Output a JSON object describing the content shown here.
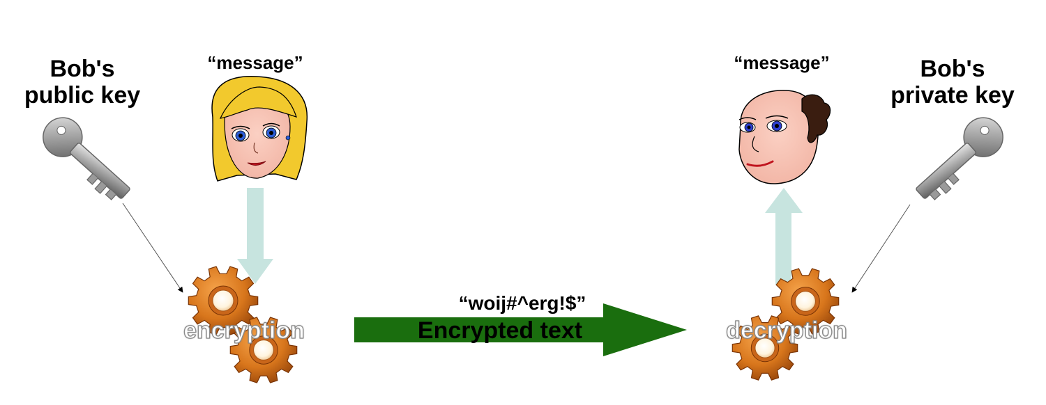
{
  "sender": {
    "key_label_line1": "Bob's",
    "key_label_line2": "public key",
    "message": "“message”",
    "process": "encryption"
  },
  "receiver": {
    "key_label_line1": "Bob's",
    "key_label_line2": "private key",
    "message": "“message”",
    "process": "decryption"
  },
  "channel": {
    "ciphertext": "“woij#^erg!$”",
    "label": "Encrypted text",
    "arrow_color": "#1a6e0e"
  },
  "colors": {
    "message_arrow": "#c7e4df",
    "gear": "#d8761c",
    "key": "#9a9a9a"
  },
  "icons": [
    "key-icon",
    "alice-face-icon",
    "bob-face-icon",
    "gear-icon",
    "arrow-icon"
  ]
}
